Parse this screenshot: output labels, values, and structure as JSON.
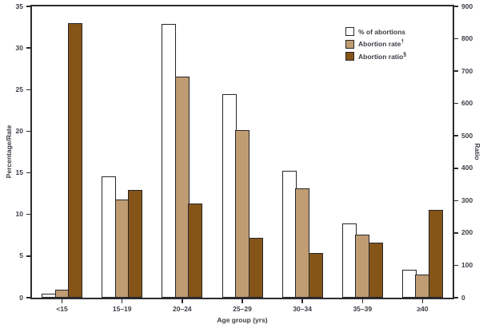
{
  "figure": {
    "x_axis_label": "Age group (yrs)",
    "y_left_axis_label": "Percentage/Rate",
    "y_right_axis_label": "Ratio"
  },
  "legend": {
    "items": [
      {
        "label": "% of abortions",
        "suffix": "",
        "color": "#ffffff"
      },
      {
        "label": "Abortion rate",
        "suffix": "†",
        "color": "#bf9c71"
      },
      {
        "label": "Abortion ratio",
        "suffix": "§",
        "color": "#855518"
      }
    ]
  },
  "chart_data": {
    "type": "bar",
    "title": "",
    "xlabel": "Age group (yrs)",
    "categories": [
      "<15",
      "15–19",
      "20–24",
      "25–29",
      "30–34",
      "35–39",
      "≥40"
    ],
    "series": [
      {
        "name": "% of abortions",
        "axis": "left",
        "color": "#ffffff",
        "values": [
          0.5,
          14.6,
          32.9,
          24.5,
          15.2,
          8.9,
          3.4
        ]
      },
      {
        "name": "Abortion rate",
        "axis": "left",
        "color": "#bf9c71",
        "values": [
          1.0,
          11.8,
          26.6,
          20.1,
          13.1,
          7.6,
          2.8
        ]
      },
      {
        "name": "Abortion ratio",
        "axis": "right",
        "color": "#855518",
        "values": [
          848,
          334,
          292,
          184,
          138,
          171,
          272
        ]
      }
    ],
    "left_axis": {
      "label": "Percentage/Rate",
      "min": 0,
      "max": 35,
      "step": 5
    },
    "right_axis": {
      "label": "Ratio",
      "min": 0,
      "max": 900,
      "step": 100
    },
    "grid": false,
    "legend_position": "top-right",
    "bar_outline_color": "#26262b",
    "axis_color": "#2b2b30"
  }
}
